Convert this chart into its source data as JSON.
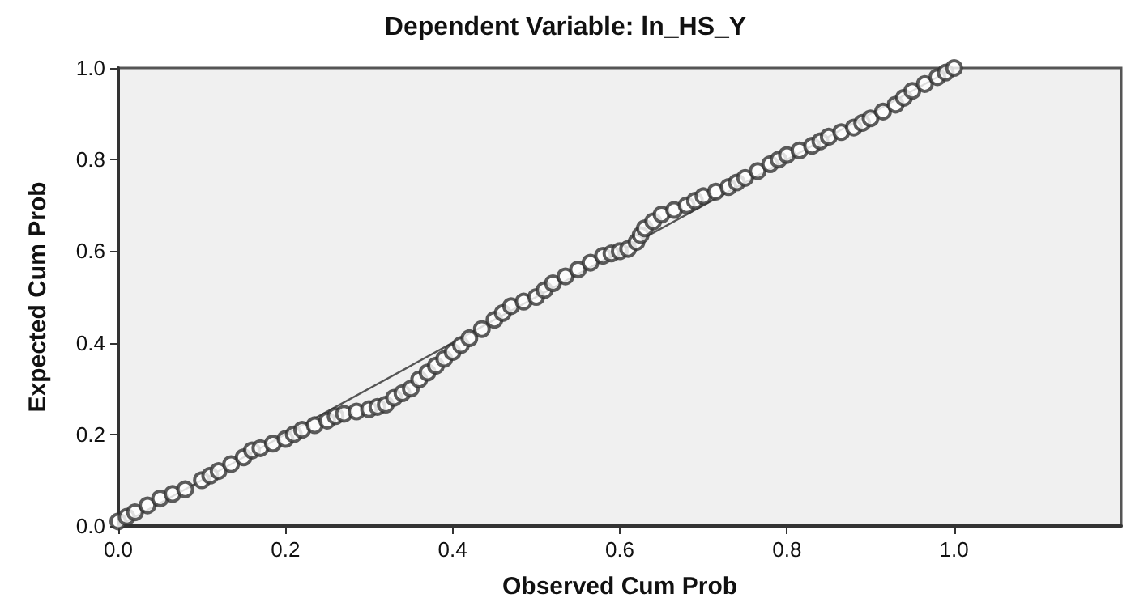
{
  "chart_data": {
    "type": "scatter",
    "title": "Dependent Variable: ln_HS_Y",
    "xlabel": "Observed Cum Prob",
    "ylabel": "Expected Cum Prob",
    "xlim": [
      0,
      1.2
    ],
    "xticks": [
      {
        "value": 0,
        "label": "0.0"
      },
      {
        "value": 0.2,
        "label": "0.2"
      },
      {
        "value": 0.4,
        "label": "0.4"
      },
      {
        "value": 0.6,
        "label": "0.6"
      },
      {
        "value": 0.8,
        "label": "0.8"
      },
      {
        "value": 1,
        "label": "1.0"
      }
    ],
    "ylim": [
      0,
      1
    ],
    "yticks": [
      {
        "value": 0,
        "label": "0.0"
      },
      {
        "value": 0.2,
        "label": "0.2"
      },
      {
        "value": 0.4,
        "label": "0.4"
      },
      {
        "value": 0.6,
        "label": "0.6"
      },
      {
        "value": 0.8,
        "label": "0.8"
      },
      {
        "value": 1,
        "label": "1.0"
      }
    ],
    "grid": false,
    "marker": "circle",
    "series": [
      {
        "color": "#333333",
        "x": [
          0,
          0.01,
          0.02,
          0.035,
          0.05,
          0.065,
          0.08,
          0.1,
          0.11,
          0.12,
          0.135,
          0.15,
          0.16,
          0.17,
          0.185,
          0.2,
          0.21,
          0.22,
          0.235,
          0.25,
          0.26,
          0.27,
          0.285,
          0.3,
          0.31,
          0.32,
          0.33,
          0.34,
          0.35,
          0.36,
          0.37,
          0.38,
          0.39,
          0.4,
          0.41,
          0.42,
          0.435,
          0.45,
          0.46,
          0.47,
          0.485,
          0.5,
          0.51,
          0.52,
          0.535,
          0.55,
          0.565,
          0.58,
          0.59,
          0.6,
          0.61,
          0.62,
          0.625,
          0.63,
          0.64,
          0.65,
          0.665,
          0.68,
          0.69,
          0.7,
          0.715,
          0.73,
          0.74,
          0.75,
          0.765,
          0.78,
          0.79,
          0.8,
          0.815,
          0.83,
          0.84,
          0.85,
          0.865,
          0.88,
          0.89,
          0.9,
          0.915,
          0.93,
          0.94,
          0.95,
          0.965,
          0.98,
          0.99,
          1.0
        ],
        "values": [
          0.01,
          0.02,
          0.03,
          0.045,
          0.06,
          0.07,
          0.08,
          0.1,
          0.11,
          0.12,
          0.135,
          0.15,
          0.165,
          0.17,
          0.18,
          0.19,
          0.2,
          0.21,
          0.22,
          0.23,
          0.24,
          0.245,
          0.25,
          0.255,
          0.26,
          0.265,
          0.28,
          0.29,
          0.3,
          0.32,
          0.335,
          0.35,
          0.365,
          0.38,
          0.395,
          0.41,
          0.43,
          0.45,
          0.465,
          0.48,
          0.49,
          0.5,
          0.515,
          0.53,
          0.545,
          0.56,
          0.575,
          0.59,
          0.595,
          0.6,
          0.605,
          0.62,
          0.635,
          0.65,
          0.665,
          0.68,
          0.69,
          0.7,
          0.71,
          0.72,
          0.73,
          0.74,
          0.75,
          0.76,
          0.775,
          0.79,
          0.8,
          0.81,
          0.82,
          0.83,
          0.84,
          0.85,
          0.86,
          0.87,
          0.88,
          0.89,
          0.905,
          0.92,
          0.935,
          0.95,
          0.965,
          0.98,
          0.99,
          1.0
        ]
      },
      {
        "type": "line",
        "color": "#555555",
        "marker": "none",
        "x": [
          0,
          1
        ],
        "values": [
          0,
          1
        ]
      }
    ]
  }
}
